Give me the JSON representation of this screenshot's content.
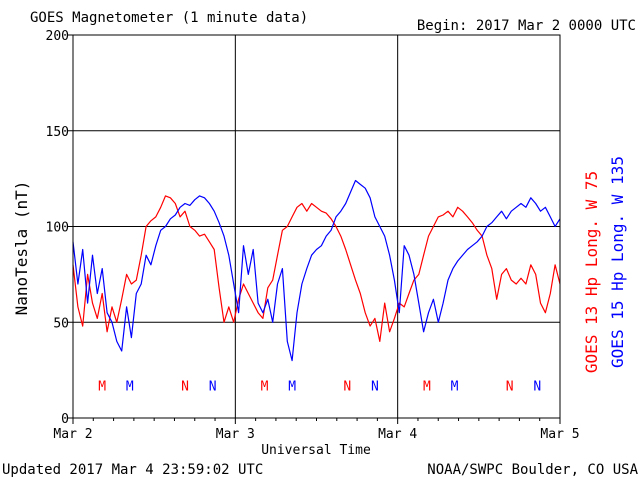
{
  "chart_data": {
    "type": "line",
    "title": "GOES Magnetometer (1 minute data)",
    "begin_label": "Begin:  2017 Mar 2 0000 UTC",
    "ylabel": "NanoTesla (nT)",
    "xlabel": "Universal Time",
    "updated_label": "Updated 2017 Mar  4 23:59:02 UTC",
    "source_label": "NOAA/SWPC Boulder, CO USA",
    "x_unit": "days since 2017 Mar 2 0000 UTC",
    "xlim": [
      0,
      3
    ],
    "ylim": [
      0,
      200
    ],
    "y_ticks": [
      0,
      50,
      100,
      150,
      200
    ],
    "y_tick_labels": [
      "0",
      "50",
      "100",
      "150",
      "200"
    ],
    "x_ticks": [
      0,
      1,
      2,
      3
    ],
    "x_tick_labels": [
      "Mar 2",
      "Mar 3",
      "Mar 4",
      "Mar 5"
    ],
    "grid": true,
    "legend_placement": "right (vertical)",
    "series": [
      {
        "name": "GOES 13 Hp  Long. W 75",
        "color": "#ff0000",
        "x": [
          0.0,
          0.03,
          0.06,
          0.09,
          0.12,
          0.15,
          0.18,
          0.21,
          0.24,
          0.27,
          0.3,
          0.33,
          0.36,
          0.39,
          0.42,
          0.45,
          0.48,
          0.51,
          0.54,
          0.57,
          0.6,
          0.63,
          0.66,
          0.69,
          0.72,
          0.75,
          0.78,
          0.81,
          0.84,
          0.87,
          0.9,
          0.93,
          0.96,
          0.99,
          1.02,
          1.05,
          1.08,
          1.11,
          1.14,
          1.17,
          1.2,
          1.23,
          1.26,
          1.29,
          1.32,
          1.35,
          1.38,
          1.41,
          1.44,
          1.47,
          1.5,
          1.53,
          1.56,
          1.59,
          1.62,
          1.65,
          1.68,
          1.71,
          1.74,
          1.77,
          1.8,
          1.83,
          1.86,
          1.89,
          1.92,
          1.95,
          1.98,
          2.01,
          2.04,
          2.07,
          2.1,
          2.13,
          2.16,
          2.19,
          2.22,
          2.25,
          2.28,
          2.31,
          2.34,
          2.37,
          2.4,
          2.43,
          2.46,
          2.49,
          2.52,
          2.55,
          2.58,
          2.61,
          2.64,
          2.67,
          2.7,
          2.73,
          2.76,
          2.79,
          2.82,
          2.85,
          2.88,
          2.91,
          2.94,
          2.97,
          3.0
        ],
        "values": [
          80,
          58,
          48,
          75,
          60,
          52,
          65,
          45,
          58,
          50,
          62,
          75,
          70,
          72,
          85,
          100,
          103,
          105,
          110,
          116,
          115,
          112,
          105,
          108,
          100,
          98,
          95,
          96,
          92,
          88,
          68,
          50,
          58,
          50,
          62,
          70,
          65,
          60,
          55,
          52,
          68,
          72,
          85,
          98,
          100,
          105,
          110,
          112,
          108,
          112,
          110,
          108,
          107,
          104,
          100,
          95,
          88,
          80,
          72,
          65,
          55,
          48,
          52,
          40,
          60,
          45,
          52,
          60,
          58,
          65,
          72,
          75,
          85,
          95,
          100,
          105,
          106,
          108,
          105,
          110,
          108,
          105,
          102,
          98,
          95,
          85,
          78,
          62,
          75,
          78,
          72,
          70,
          73,
          70,
          80,
          75,
          60,
          55,
          65,
          80,
          70
        ]
      },
      {
        "name": "GOES 15 Hp  Long. W 135",
        "color": "#0000ff",
        "x": [
          0.0,
          0.03,
          0.06,
          0.09,
          0.12,
          0.15,
          0.18,
          0.21,
          0.24,
          0.27,
          0.3,
          0.33,
          0.36,
          0.39,
          0.42,
          0.45,
          0.48,
          0.51,
          0.54,
          0.57,
          0.6,
          0.63,
          0.66,
          0.69,
          0.72,
          0.75,
          0.78,
          0.81,
          0.84,
          0.87,
          0.9,
          0.93,
          0.96,
          0.99,
          1.02,
          1.05,
          1.08,
          1.11,
          1.14,
          1.17,
          1.2,
          1.23,
          1.26,
          1.29,
          1.32,
          1.35,
          1.38,
          1.41,
          1.44,
          1.47,
          1.5,
          1.53,
          1.56,
          1.59,
          1.62,
          1.65,
          1.68,
          1.71,
          1.74,
          1.77,
          1.8,
          1.83,
          1.86,
          1.89,
          1.92,
          1.95,
          1.98,
          2.01,
          2.04,
          2.07,
          2.1,
          2.13,
          2.16,
          2.19,
          2.22,
          2.25,
          2.28,
          2.31,
          2.34,
          2.37,
          2.4,
          2.43,
          2.46,
          2.49,
          2.52,
          2.55,
          2.58,
          2.61,
          2.64,
          2.67,
          2.7,
          2.73,
          2.76,
          2.79,
          2.82,
          2.85,
          2.88,
          2.91,
          2.94,
          2.97,
          3.0
        ],
        "values": [
          92,
          70,
          88,
          60,
          85,
          65,
          78,
          55,
          50,
          40,
          35,
          58,
          42,
          65,
          70,
          85,
          80,
          90,
          98,
          100,
          104,
          106,
          110,
          112,
          111,
          114,
          116,
          115,
          112,
          108,
          102,
          95,
          85,
          70,
          55,
          90,
          75,
          88,
          60,
          55,
          62,
          50,
          70,
          78,
          40,
          30,
          55,
          70,
          78,
          85,
          88,
          90,
          95,
          98,
          105,
          108,
          112,
          118,
          124,
          122,
          120,
          115,
          105,
          100,
          95,
          85,
          72,
          55,
          90,
          85,
          75,
          60,
          45,
          55,
          62,
          50,
          60,
          72,
          78,
          82,
          85,
          88,
          90,
          92,
          95,
          100,
          102,
          105,
          108,
          104,
          108,
          110,
          112,
          110,
          115,
          112,
          108,
          110,
          105,
          100,
          104
        ]
      }
    ],
    "annotations": {
      "mark_value": 17,
      "markers": [
        {
          "x": 0.18,
          "label": "M",
          "color": "#ff0000"
        },
        {
          "x": 0.35,
          "label": "M",
          "color": "#0000ff"
        },
        {
          "x": 0.69,
          "label": "N",
          "color": "#ff0000"
        },
        {
          "x": 0.86,
          "label": "N",
          "color": "#0000ff"
        },
        {
          "x": 1.18,
          "label": "M",
          "color": "#ff0000"
        },
        {
          "x": 1.35,
          "label": "M",
          "color": "#0000ff"
        },
        {
          "x": 1.69,
          "label": "N",
          "color": "#ff0000"
        },
        {
          "x": 1.86,
          "label": "N",
          "color": "#0000ff"
        },
        {
          "x": 2.18,
          "label": "M",
          "color": "#ff0000"
        },
        {
          "x": 2.35,
          "label": "M",
          "color": "#0000ff"
        },
        {
          "x": 2.69,
          "label": "N",
          "color": "#ff0000"
        },
        {
          "x": 2.86,
          "label": "N",
          "color": "#0000ff"
        }
      ]
    }
  }
}
